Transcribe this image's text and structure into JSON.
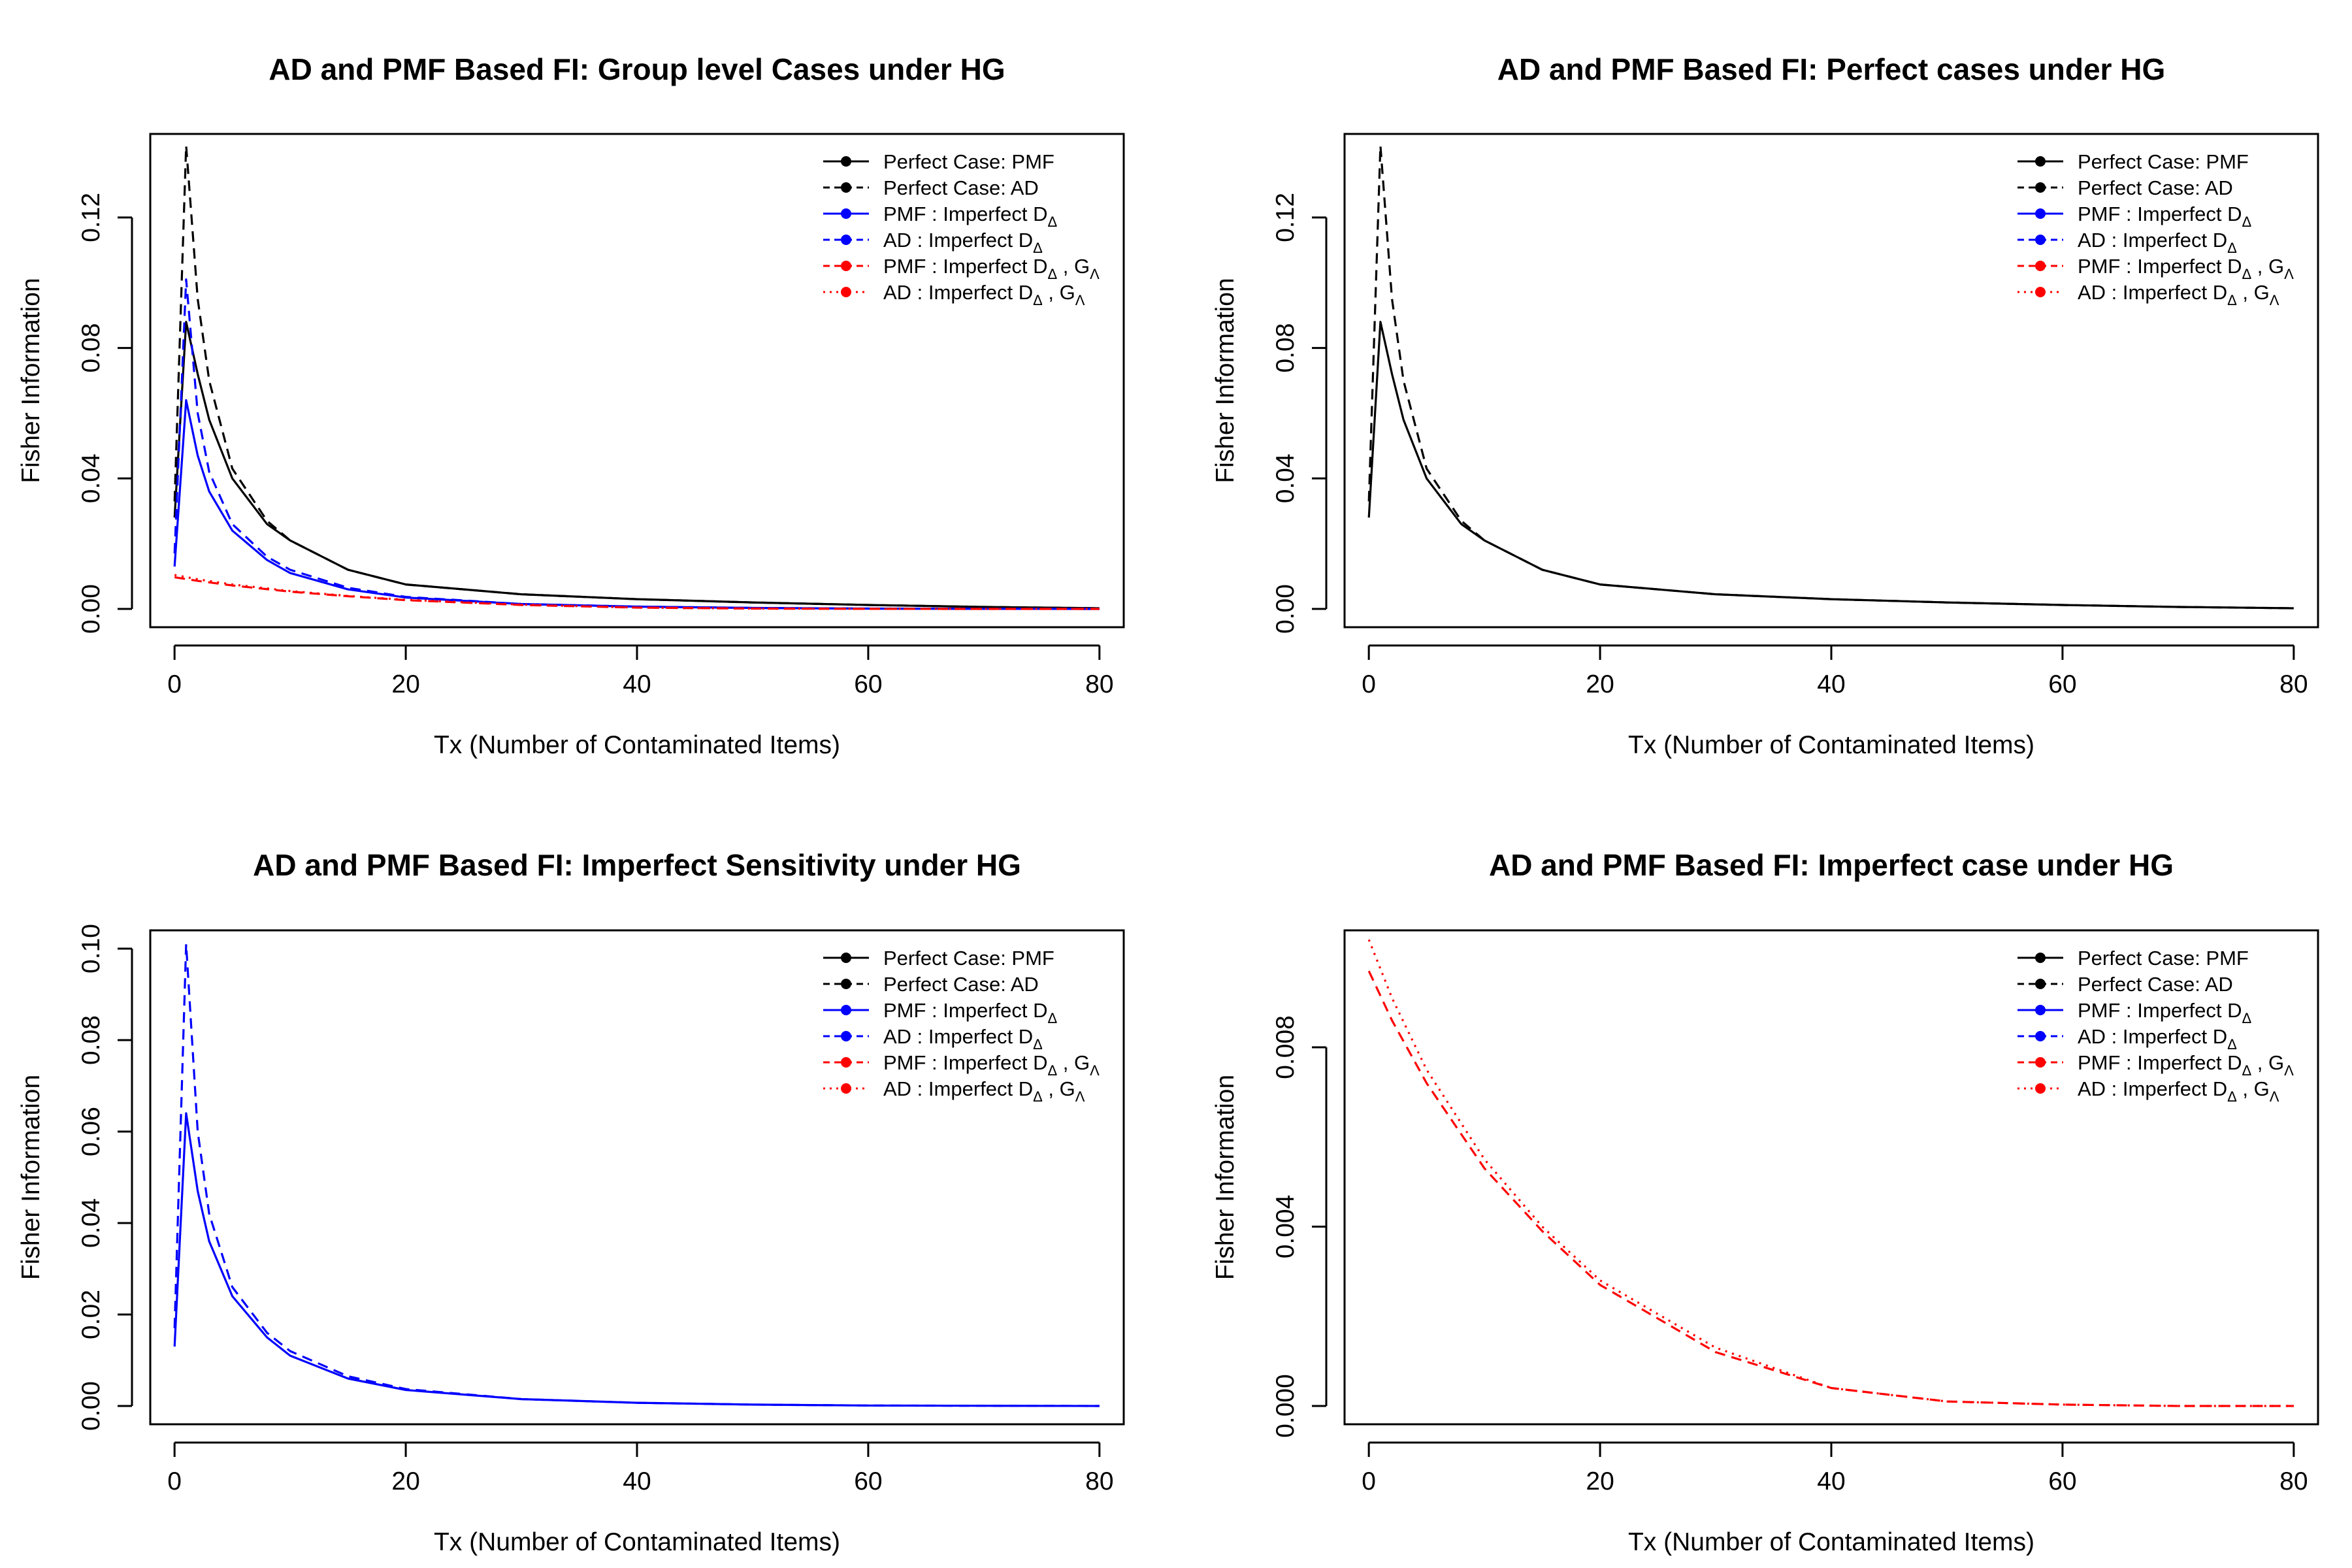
{
  "figure": {
    "background": "#ffffff",
    "colors": {
      "black": "#000000",
      "blue": "#0000ff",
      "red": "#ff0000"
    }
  },
  "legend_entries": [
    {
      "label": "Perfect Case: PMF",
      "color": "#000000",
      "dash": "solid"
    },
    {
      "label": "Perfect Case: AD",
      "color": "#000000",
      "dash": "dashed"
    },
    {
      "label": "PMF : Imperfect D",
      "sub": "Δ",
      "color": "#0000ff",
      "dash": "solid"
    },
    {
      "label": "AD : Imperfect D",
      "sub": "Δ",
      "color": "#0000ff",
      "dash": "dashed"
    },
    {
      "label": "PMF : Imperfect D",
      "sub": "Δ",
      "label2": " , G",
      "sub2": "Λ",
      "color": "#ff0000",
      "dash": "dashed"
    },
    {
      "label": "AD : Imperfect D",
      "sub": "Δ",
      "label2": " , G",
      "sub2": "Λ",
      "color": "#ff0000",
      "dash": "dotted"
    }
  ],
  "chart_data": [
    {
      "type": "line",
      "title": "AD and PMF Based FI: Group level Cases under HG",
      "xlabel": "Tx (Number of Contaminated Items)",
      "ylabel": "Fisher Information",
      "xlim": [
        0,
        80
      ],
      "ylim": [
        0,
        0.14
      ],
      "xticks": [
        "0",
        "20",
        "40",
        "60",
        "80"
      ],
      "yticks": [
        "0.00",
        "0.04",
        "0.08",
        "0.12"
      ],
      "legend_position": "top-right",
      "series": [
        {
          "name": "Perfect Case: PMF",
          "color": "#000000",
          "dash": "solid",
          "x": [
            0,
            1,
            2,
            3,
            5,
            8,
            10,
            15,
            20,
            30,
            40,
            50,
            60,
            70,
            80
          ],
          "y": [
            0.028,
            0.088,
            0.072,
            0.058,
            0.04,
            0.026,
            0.021,
            0.012,
            0.0075,
            0.0045,
            0.003,
            0.002,
            0.0012,
            0.0006,
            0.0002
          ]
        },
        {
          "name": "Perfect Case: AD",
          "color": "#000000",
          "dash": "dashed",
          "x": [
            0,
            1,
            2,
            3,
            5,
            8,
            10,
            15,
            20,
            30,
            40,
            50,
            60,
            70,
            80
          ],
          "y": [
            0.033,
            0.142,
            0.095,
            0.07,
            0.043,
            0.027,
            0.021,
            0.012,
            0.0075,
            0.0045,
            0.003,
            0.002,
            0.0012,
            0.0006,
            0.0002
          ]
        },
        {
          "name": "PMF : Imperfect DΔ",
          "color": "#0000ff",
          "dash": "solid",
          "x": [
            0,
            1,
            2,
            3,
            5,
            8,
            10,
            15,
            20,
            30,
            40,
            50,
            60,
            70,
            80
          ],
          "y": [
            0.013,
            0.064,
            0.047,
            0.036,
            0.024,
            0.015,
            0.011,
            0.006,
            0.0035,
            0.0015,
            0.0007,
            0.0003,
            0.0001,
            5e-05,
            0.0
          ]
        },
        {
          "name": "AD : Imperfect DΔ",
          "color": "#0000ff",
          "dash": "dashed",
          "x": [
            0,
            1,
            2,
            3,
            5,
            8,
            10,
            15,
            20,
            30,
            40,
            50,
            60,
            70,
            80
          ],
          "y": [
            0.017,
            0.101,
            0.06,
            0.042,
            0.026,
            0.016,
            0.012,
            0.0065,
            0.0037,
            0.0015,
            0.0007,
            0.0003,
            0.0001,
            5e-05,
            0.0
          ]
        },
        {
          "name": "PMF : Imperfect DΔ , GΛ",
          "color": "#ff0000",
          "dash": "dashed",
          "x": [
            0,
            2,
            5,
            10,
            15,
            20,
            30,
            40,
            50,
            60,
            70,
            80
          ],
          "y": [
            0.0097,
            0.0086,
            0.0072,
            0.0053,
            0.0039,
            0.0027,
            0.0012,
            0.0004,
            0.0001,
            3e-05,
            0.0,
            0.0
          ]
        },
        {
          "name": "AD : Imperfect DΔ , GΛ",
          "color": "#ff0000",
          "dash": "dotted",
          "x": [
            0,
            2,
            5,
            10,
            15,
            20,
            30,
            40,
            50,
            60,
            70,
            80
          ],
          "y": [
            0.0104,
            0.0091,
            0.0075,
            0.0055,
            0.004,
            0.0028,
            0.0013,
            0.0004,
            0.0001,
            3e-05,
            0.0,
            0.0
          ]
        }
      ]
    },
    {
      "type": "line",
      "title": "AD and PMF Based FI: Perfect cases under HG",
      "xlabel": "Tx (Number of Contaminated Items)",
      "ylabel": "Fisher Information",
      "xlim": [
        0,
        80
      ],
      "ylim": [
        0,
        0.14
      ],
      "xticks": [
        "0",
        "20",
        "40",
        "60",
        "80"
      ],
      "yticks": [
        "0.00",
        "0.04",
        "0.08",
        "0.12"
      ],
      "legend_position": "top-right",
      "series": [
        {
          "name": "Perfect Case: PMF",
          "color": "#000000",
          "dash": "solid",
          "x": [
            0,
            1,
            2,
            3,
            5,
            8,
            10,
            15,
            20,
            30,
            40,
            50,
            60,
            70,
            80
          ],
          "y": [
            0.028,
            0.088,
            0.072,
            0.058,
            0.04,
            0.026,
            0.021,
            0.012,
            0.0075,
            0.0045,
            0.003,
            0.002,
            0.0012,
            0.0006,
            0.0002
          ]
        },
        {
          "name": "Perfect Case: AD",
          "color": "#000000",
          "dash": "dashed",
          "x": [
            0,
            1,
            2,
            3,
            5,
            8,
            10,
            15,
            20,
            30,
            40,
            50,
            60,
            70,
            80
          ],
          "y": [
            0.033,
            0.142,
            0.095,
            0.07,
            0.043,
            0.027,
            0.021,
            0.012,
            0.0075,
            0.0045,
            0.003,
            0.002,
            0.0012,
            0.0006,
            0.0002
          ]
        }
      ]
    },
    {
      "type": "line",
      "title": "AD and PMF Based FI: Imperfect Sensitivity under HG",
      "xlabel": "Tx (Number of Contaminated Items)",
      "ylabel": "Fisher Information",
      "xlim": [
        0,
        80
      ],
      "ylim": [
        0,
        0.1
      ],
      "xticks": [
        "0",
        "20",
        "40",
        "60",
        "80"
      ],
      "yticks": [
        "0.00",
        "0.02",
        "0.04",
        "0.06",
        "0.08",
        "0.10"
      ],
      "legend_position": "top-right",
      "series": [
        {
          "name": "PMF : Imperfect DΔ",
          "color": "#0000ff",
          "dash": "solid",
          "x": [
            0,
            1,
            2,
            3,
            5,
            8,
            10,
            15,
            20,
            30,
            40,
            50,
            60,
            70,
            80
          ],
          "y": [
            0.013,
            0.064,
            0.047,
            0.036,
            0.024,
            0.015,
            0.011,
            0.006,
            0.0035,
            0.0015,
            0.0007,
            0.0003,
            0.0001,
            5e-05,
            0.0
          ]
        },
        {
          "name": "AD : Imperfect DΔ",
          "color": "#0000ff",
          "dash": "dashed",
          "x": [
            0,
            1,
            2,
            3,
            5,
            8,
            10,
            15,
            20,
            30,
            40,
            50,
            60,
            70,
            80
          ],
          "y": [
            0.017,
            0.101,
            0.06,
            0.042,
            0.026,
            0.016,
            0.012,
            0.0065,
            0.0037,
            0.0015,
            0.0007,
            0.0003,
            0.0001,
            5e-05,
            0.0
          ]
        }
      ]
    },
    {
      "type": "line",
      "title": "AD and PMF Based FI: Imperfect case under HG",
      "xlabel": "Tx (Number of Contaminated Items)",
      "ylabel": "Fisher Information",
      "xlim": [
        0,
        80
      ],
      "ylim": [
        0,
        0.0102
      ],
      "xticks": [
        "0",
        "20",
        "40",
        "60",
        "80"
      ],
      "yticks": [
        "0.000",
        "0.004",
        "0.008"
      ],
      "legend_position": "top-right",
      "series": [
        {
          "name": "PMF : Imperfect DΔ , GΛ",
          "color": "#ff0000",
          "dash": "dashed",
          "x": [
            0,
            2,
            5,
            10,
            15,
            20,
            30,
            40,
            50,
            60,
            70,
            80
          ],
          "y": [
            0.0097,
            0.0086,
            0.0072,
            0.0053,
            0.0039,
            0.0027,
            0.0012,
            0.0004,
            0.0001,
            3e-05,
            0.0,
            0.0
          ]
        },
        {
          "name": "AD : Imperfect DΔ , GΛ",
          "color": "#ff0000",
          "dash": "dotted",
          "x": [
            0,
            2,
            5,
            10,
            15,
            20,
            30,
            40,
            50,
            60,
            70,
            80
          ],
          "y": [
            0.0104,
            0.0091,
            0.0075,
            0.0055,
            0.004,
            0.0028,
            0.0013,
            0.0004,
            0.0001,
            3e-05,
            0.0,
            0.0
          ]
        }
      ]
    }
  ]
}
